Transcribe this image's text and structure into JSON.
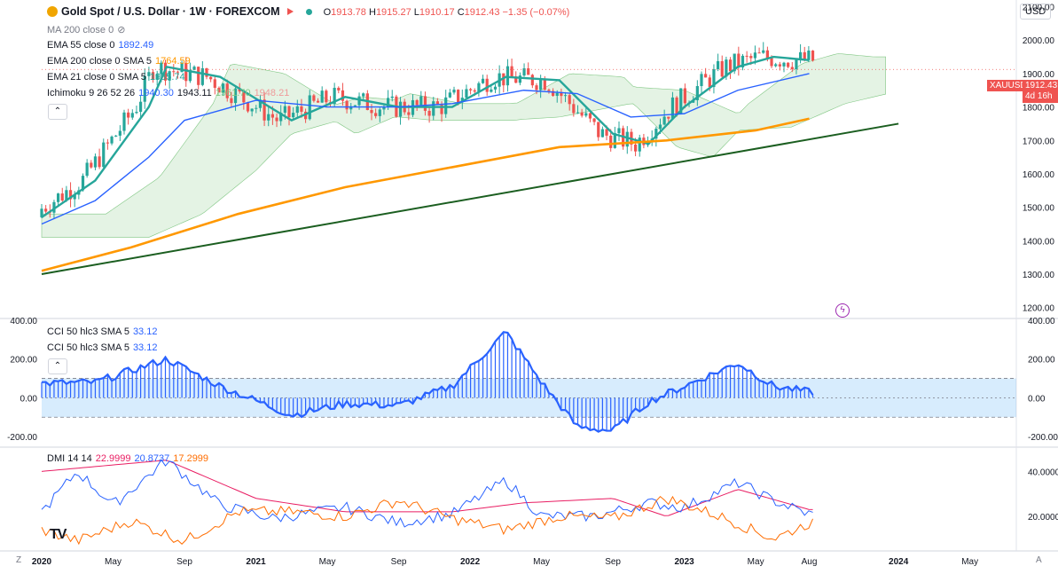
{
  "header": {
    "symbol_title": "Gold Spot / U.S. Dollar · 1W · FOREXCOM",
    "ohlc": {
      "o_label": "O",
      "o": "1913.78",
      "h_label": "H",
      "h": "1915.27",
      "l_label": "L",
      "l": "1910.17",
      "c_label": "C",
      "c": "1912.43",
      "chg": "−1.35 (−0.07%)"
    },
    "currency": "USD"
  },
  "indicators": [
    {
      "name": "MA 200 close 0",
      "value": "",
      "color": "#787b86"
    },
    {
      "name": "EMA 55 close 0",
      "value": "1892.49",
      "color": "#2962ff"
    },
    {
      "name": "EMA 200 close 0 SMA 5",
      "value": "1764.59",
      "color": "#ff9800"
    },
    {
      "name": "EMA 21 close 0 SMA 5",
      "value": "1935.74",
      "color": "#26a69a"
    },
    {
      "name": "Ichimoku 9 26 52 26",
      "value": "1940.30",
      "value2": "1943.11",
      "value3": "1961.70",
      "value4": "1948.21",
      "color": "#2962ff"
    }
  ],
  "cci_legend": [
    {
      "name": "CCI 50 hlc3 SMA 5",
      "value": "33.12"
    },
    {
      "name": "CCI 50 hlc3 SMA 5",
      "value": "33.12"
    }
  ],
  "dmi_legend": {
    "name": "DMI 14 14",
    "v1": "22.9999",
    "v2": "20.8737",
    "v3": "17.2999",
    "c1": "#e91e63",
    "c2": "#2962ff",
    "c3": "#ff6d00"
  },
  "last_price": {
    "symbol": "XAUUSD",
    "price": "1912.43",
    "countdown": "4d 16h"
  },
  "bottom_corner_left": "Z",
  "bottom_corner_right": "A",
  "chart_data": [
    {
      "type": "line",
      "title": "Gold Spot / U.S. Dollar · 1W · FOREXCOM",
      "x_ticks": [
        "2020",
        "May",
        "Sep",
        "2021",
        "May",
        "Sep",
        "2022",
        "May",
        "Sep",
        "2023",
        "May",
        "Aug",
        "2024",
        "May"
      ],
      "y_ticks": [
        "2100.00",
        "2000.00",
        "1900.00",
        "1800.00",
        "1700.00",
        "1600.00",
        "1500.00",
        "1400.00",
        "1300.00",
        "1200.00"
      ],
      "ylim": [
        1170,
        2120
      ],
      "x_range": [
        "2020-01",
        "2024-07"
      ],
      "series": [
        {
          "name": "EMA 21 close 0 SMA 5",
          "color": "#26a69a",
          "x": [
            "2020-01",
            "2020-04",
            "2020-07",
            "2020-08",
            "2020-11",
            "2021-03",
            "2021-06",
            "2021-09",
            "2021-12",
            "2022-03",
            "2022-06",
            "2022-09",
            "2022-11",
            "2023-01",
            "2023-04",
            "2023-06",
            "2023-08"
          ],
          "values": [
            1470,
            1580,
            1800,
            1920,
            1890,
            1760,
            1830,
            1800,
            1800,
            1890,
            1880,
            1720,
            1690,
            1800,
            1920,
            1950,
            1940
          ]
        },
        {
          "name": "EMA 55 close 0",
          "color": "#2962ff",
          "x": [
            "2020-01",
            "2020-04",
            "2020-07",
            "2020-09",
            "2021-01",
            "2021-05",
            "2021-09",
            "2021-12",
            "2022-04",
            "2022-07",
            "2022-10",
            "2023-01",
            "2023-04",
            "2023-08"
          ],
          "values": [
            1450,
            1520,
            1650,
            1760,
            1820,
            1800,
            1800,
            1810,
            1850,
            1840,
            1770,
            1780,
            1850,
            1900
          ]
        },
        {
          "name": "EMA 200 close 0 SMA 5",
          "color": "#ff9800",
          "x": [
            "2020-01",
            "2020-06",
            "2020-12",
            "2021-06",
            "2021-12",
            "2022-06",
            "2022-12",
            "2023-05",
            "2023-08"
          ],
          "values": [
            1310,
            1380,
            1480,
            1560,
            1620,
            1680,
            1700,
            1730,
            1765
          ]
        },
        {
          "name": "Trendline",
          "color": "#1b5e20",
          "x": [
            "2020-01",
            "2024-01"
          ],
          "values": [
            1300,
            1750
          ]
        }
      ]
    },
    {
      "type": "bar",
      "title": "CCI 50 hlc3 SMA 5",
      "y_ticks": [
        "400.00",
        "200.00",
        "0.00",
        "-200.00"
      ],
      "ylim": [
        -250,
        400
      ],
      "band": [
        -100,
        100
      ],
      "x": [
        "2020-01",
        "2020-04",
        "2020-08",
        "2020-11",
        "2021-03",
        "2021-06",
        "2021-09",
        "2021-12",
        "2022-03",
        "2022-05",
        "2022-07",
        "2022-09",
        "2022-11",
        "2023-01",
        "2023-04",
        "2023-06",
        "2023-08"
      ],
      "values": [
        75,
        80,
        200,
        60,
        -90,
        -30,
        -40,
        60,
        340,
        80,
        -150,
        -170,
        -20,
        60,
        180,
        60,
        30
      ]
    },
    {
      "type": "line",
      "title": "DMI 14 14",
      "y_ticks": [
        "40.0000",
        "20.0000"
      ],
      "ylim": [
        5,
        50
      ],
      "series": [
        {
          "name": "ADX",
          "color": "#e91e63",
          "x": [
            "2020-01",
            "2020-08",
            "2021-01",
            "2021-06",
            "2021-12",
            "2022-04",
            "2022-09",
            "2022-12",
            "2023-04",
            "2023-08"
          ],
          "values": [
            40,
            45,
            28,
            22,
            22,
            26,
            28,
            20,
            32,
            23
          ]
        },
        {
          "name": "+DI",
          "color": "#2962ff",
          "x": [
            "2020-01",
            "2020-03",
            "2020-05",
            "2020-08",
            "2020-11",
            "2021-02",
            "2021-06",
            "2021-09",
            "2021-12",
            "2022-03",
            "2022-05",
            "2022-08",
            "2022-11",
            "2023-01",
            "2023-04",
            "2023-06",
            "2023-08"
          ],
          "values": [
            22,
            40,
            25,
            45,
            25,
            19,
            24,
            17,
            21,
            36,
            20,
            20,
            26,
            24,
            35,
            27,
            21
          ]
        },
        {
          "name": "-DI",
          "color": "#ff6d00",
          "x": [
            "2020-01",
            "2020-03",
            "2020-06",
            "2020-09",
            "2020-12",
            "2021-03",
            "2021-06",
            "2021-09",
            "2021-12",
            "2022-03",
            "2022-06",
            "2022-09",
            "2022-12",
            "2023-03",
            "2023-06",
            "2023-08"
          ],
          "values": [
            14,
            9,
            18,
            9,
            22,
            22,
            20,
            27,
            19,
            14,
            20,
            19,
            28,
            20,
            10,
            17
          ]
        }
      ]
    }
  ]
}
